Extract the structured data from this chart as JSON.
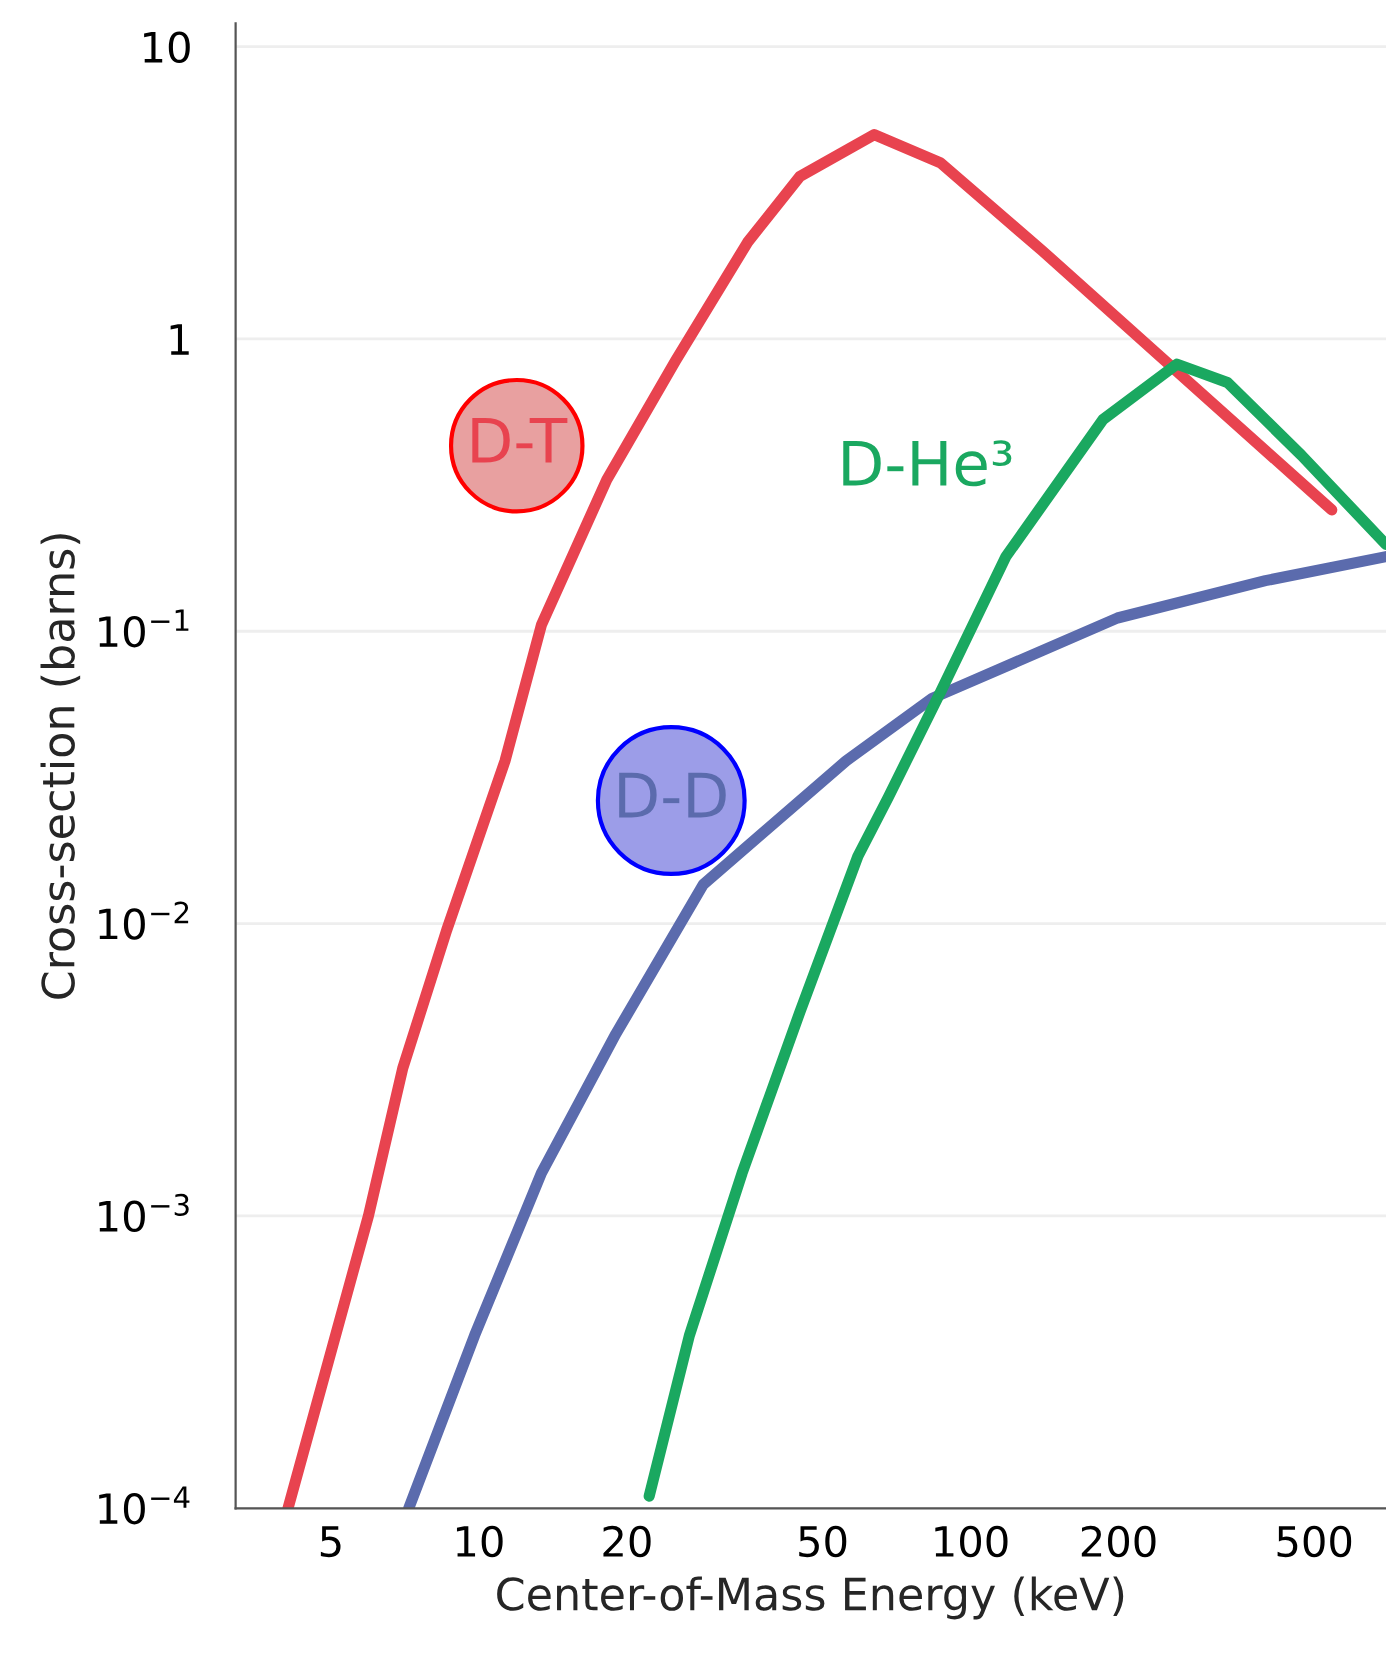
{
  "chart_data": {
    "type": "line",
    "xlabel": "Center-of-Mass Energy (keV)",
    "ylabel": "Cross-section (barns)",
    "log": "xy",
    "xlim": [
      3.2,
      700
    ],
    "ylim": [
      0.0001,
      12
    ],
    "xticks": [
      5,
      10,
      20,
      50,
      100,
      200,
      500
    ],
    "yticks": [
      10,
      1,
      {
        "value": 0.1,
        "label": "10$^{−1}$"
      },
      {
        "value": 0.01,
        "label": "10$^{−2}$"
      },
      {
        "value": 0.001,
        "label": "10$^{−3}$"
      },
      {
        "value": 0.0001,
        "label": "10$^{−4}$"
      }
    ],
    "grid": "y",
    "legend": false,
    "line_style": "solid",
    "marker": "none",
    "series": [
      {
        "name": "D-T",
        "color": "#e8434f",
        "x": [
          4.09,
          5.96,
          7.0,
          8.6,
          11.3,
          13.4,
          18.2,
          25.1,
          35.2,
          45,
          63.7,
          86.9,
          140,
          238,
          543
        ],
        "values": [
          0.0001,
          0.001,
          0.0032,
          0.0095,
          0.036,
          0.105,
          0.33,
          0.84,
          2.14,
          3.6,
          5.0,
          4.0,
          2.0,
          0.9,
          0.26
        ]
      },
      {
        "name": "D-D",
        "color": "#5b6bad",
        "x": [
          7.2,
          9.8,
          13.4,
          19.0,
          28.6,
          55.8,
          83.6,
          199,
          398,
          700
        ],
        "values": [
          0.0001,
          0.00039,
          0.0014,
          0.0042,
          0.0136,
          0.036,
          0.059,
          0.111,
          0.149,
          0.18
        ]
      },
      {
        "name": "D-He³",
        "color": "#1aa860",
        "x": [
          22.2,
          26.8,
          34.3,
          45,
          59,
          68,
          86.9,
          118,
          186,
          263,
          333,
          471,
          700
        ],
        "values": [
          0.00011,
          0.00039,
          0.0014,
          0.005,
          0.017,
          0.027,
          0.062,
          0.18,
          0.53,
          0.82,
          0.71,
          0.4,
          0.198
        ]
      }
    ]
  }
}
